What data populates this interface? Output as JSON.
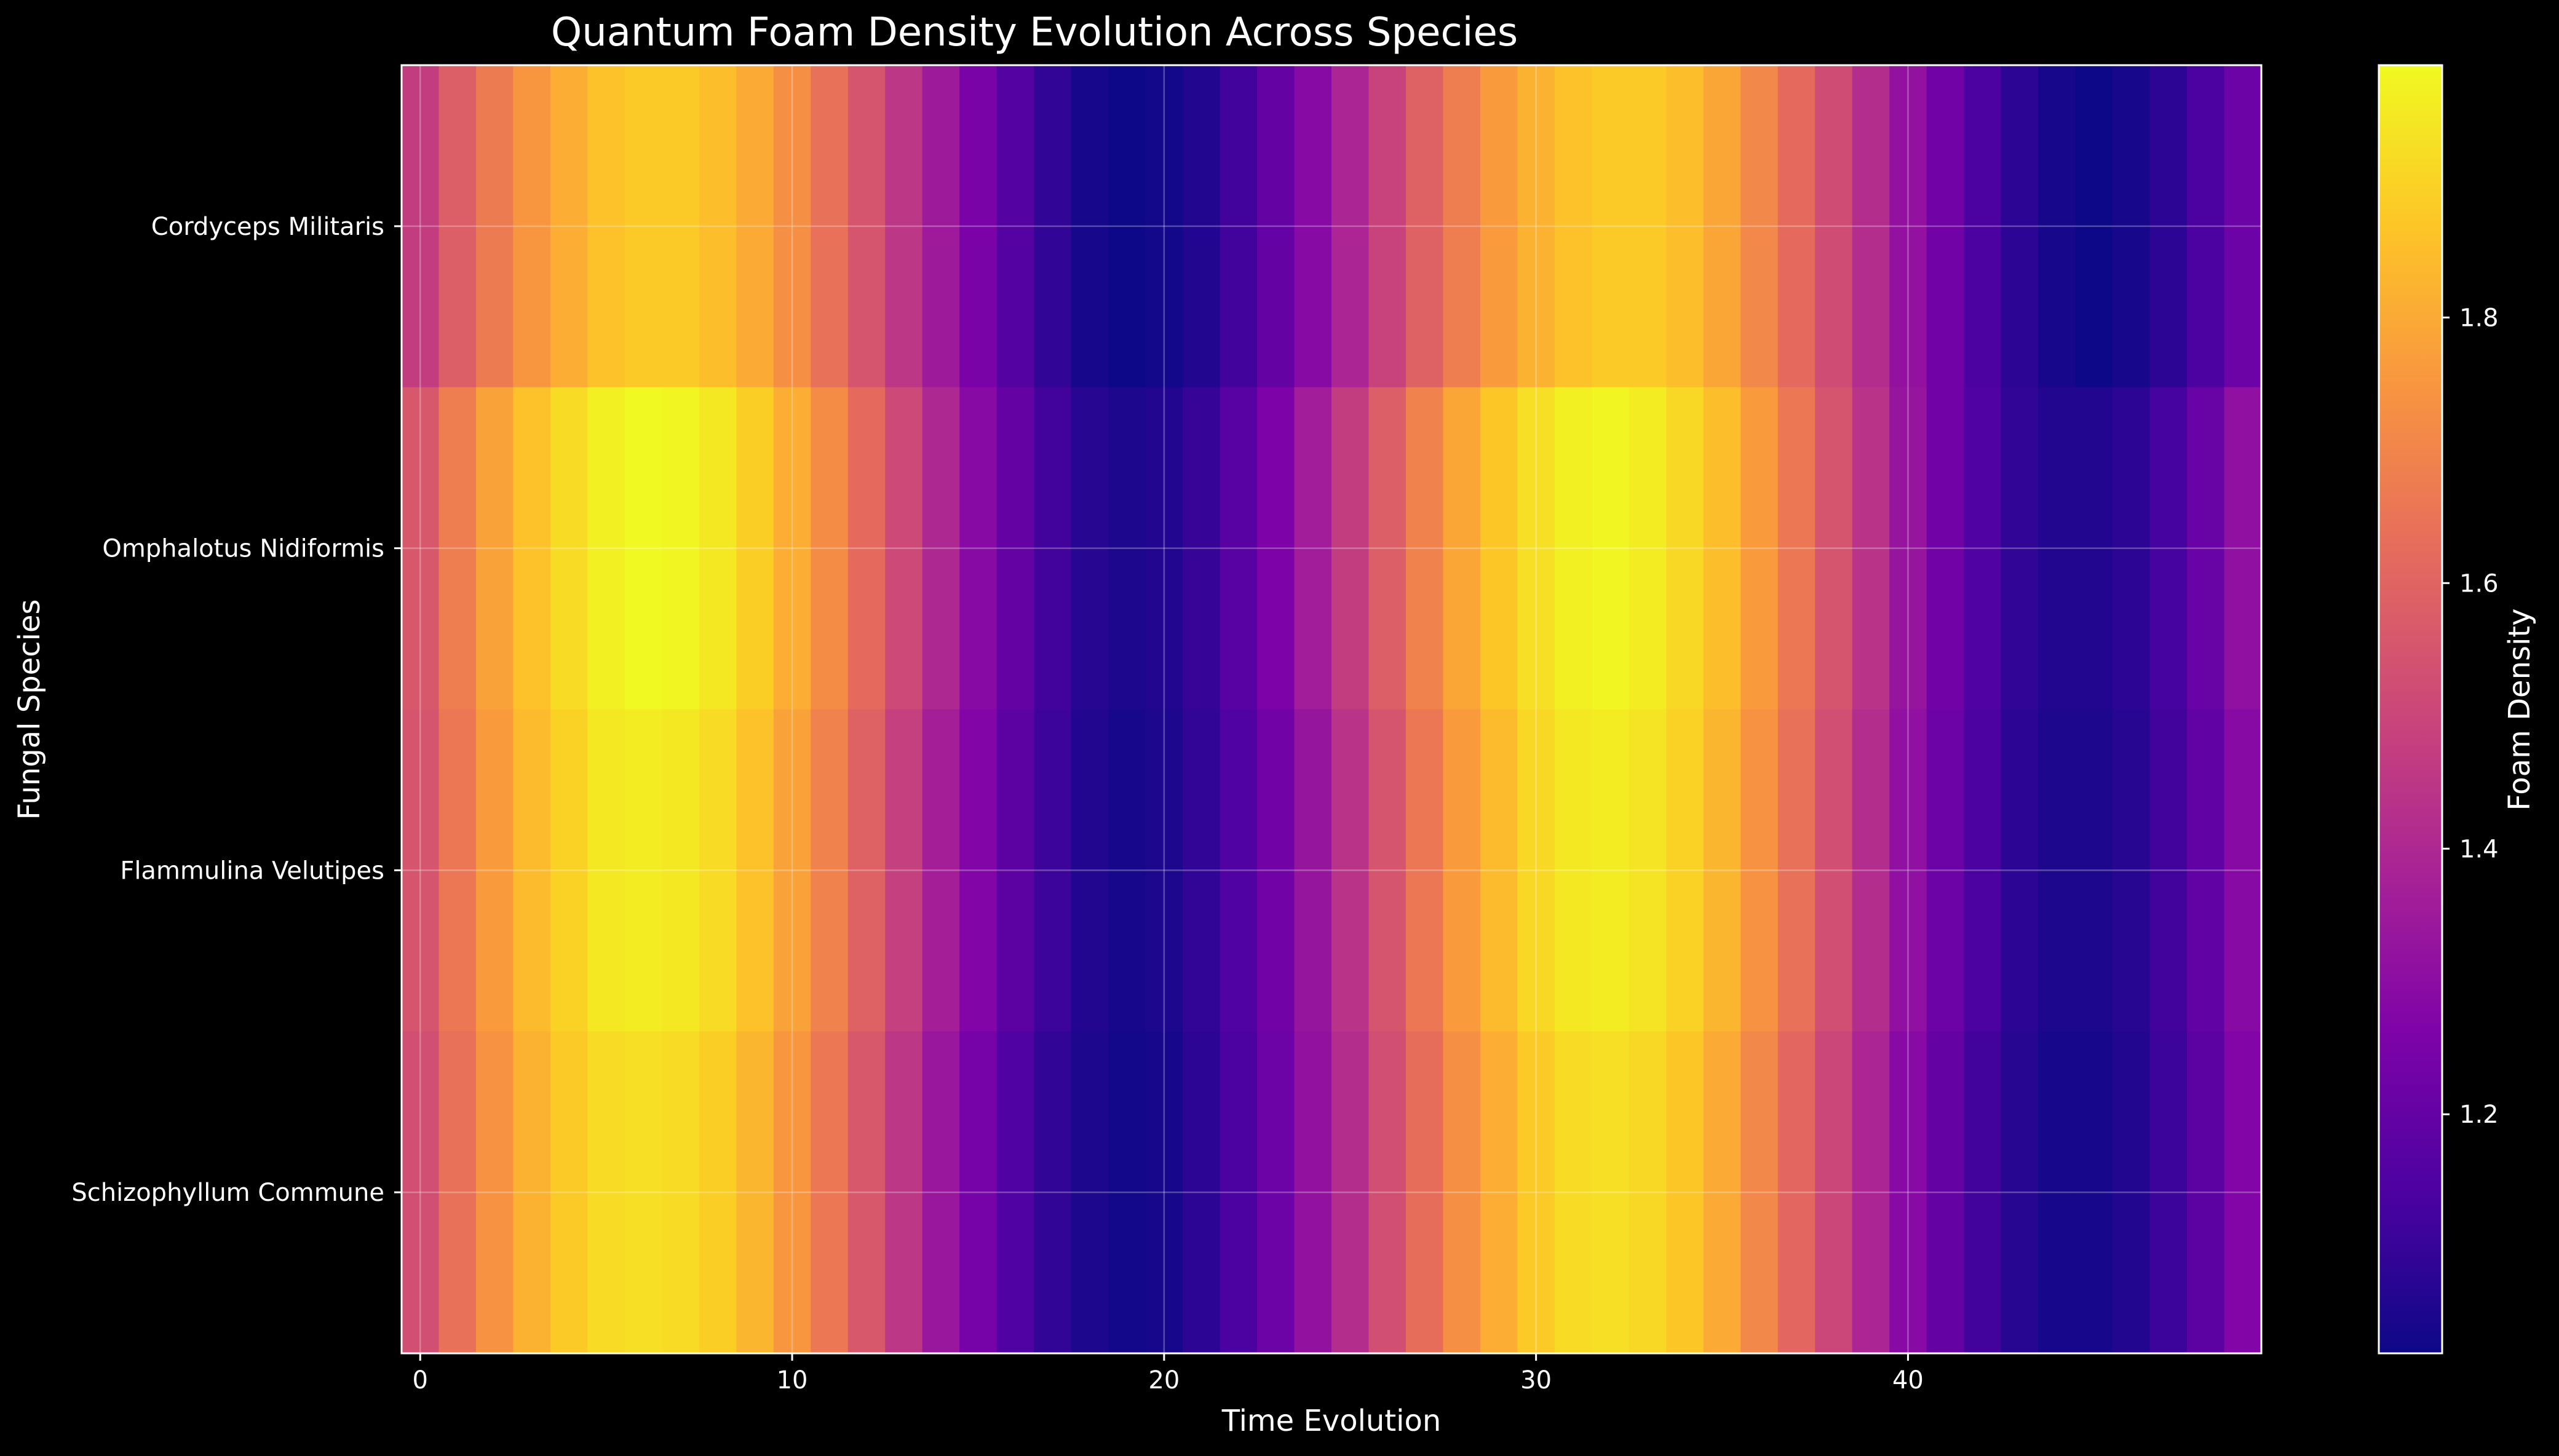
{
  "chart_data": {
    "type": "heatmap",
    "title": "Quantum Foam Density Evolution Across Species",
    "xlabel": "Time Evolution",
    "ylabel": "Fungal Species",
    "colorbar_label": "Foam Density",
    "colormap": "plasma",
    "grid": true,
    "x": [
      0,
      1,
      2,
      3,
      4,
      5,
      6,
      7,
      8,
      9,
      10,
      11,
      12,
      13,
      14,
      15,
      16,
      17,
      18,
      19,
      20,
      21,
      22,
      23,
      24,
      25,
      26,
      27,
      28,
      29,
      30,
      31,
      32,
      33,
      34,
      35,
      36,
      37,
      38,
      39,
      40,
      41,
      42,
      43,
      44,
      45,
      46,
      47,
      48,
      49
    ],
    "x_ticks": [
      0,
      10,
      20,
      30,
      40
    ],
    "xlim": [
      -0.5,
      49.5
    ],
    "rows": [
      "Cordyceps Militaris",
      "Omphalotus Nidiformis",
      "Flammulina Velutipes",
      "Schizophyllum Commune"
    ],
    "color_range": [
      1.02,
      1.99
    ],
    "colorbar_ticks": [
      1.2,
      1.4,
      1.6,
      1.8
    ],
    "values": [
      [
        1.47,
        1.58,
        1.67,
        1.75,
        1.81,
        1.86,
        1.88,
        1.88,
        1.85,
        1.8,
        1.73,
        1.64,
        1.55,
        1.45,
        1.35,
        1.25,
        1.16,
        1.09,
        1.04,
        1.02,
        1.03,
        1.06,
        1.12,
        1.2,
        1.29,
        1.39,
        1.49,
        1.59,
        1.68,
        1.76,
        1.82,
        1.86,
        1.88,
        1.88,
        1.85,
        1.79,
        1.71,
        1.62,
        1.52,
        1.42,
        1.32,
        1.23,
        1.14,
        1.08,
        1.04,
        1.02,
        1.04,
        1.08,
        1.14,
        1.22
      ],
      [
        1.56,
        1.68,
        1.78,
        1.86,
        1.92,
        1.97,
        1.99,
        1.98,
        1.95,
        1.89,
        1.81,
        1.72,
        1.62,
        1.51,
        1.4,
        1.29,
        1.2,
        1.12,
        1.07,
        1.05,
        1.06,
        1.1,
        1.17,
        1.26,
        1.36,
        1.47,
        1.58,
        1.69,
        1.79,
        1.87,
        1.93,
        1.97,
        1.98,
        1.96,
        1.91,
        1.85,
        1.76,
        1.66,
        1.55,
        1.44,
        1.33,
        1.23,
        1.15,
        1.09,
        1.06,
        1.06,
        1.08,
        1.13,
        1.21,
        1.31
      ],
      [
        1.55,
        1.66,
        1.76,
        1.84,
        1.9,
        1.95,
        1.96,
        1.95,
        1.92,
        1.86,
        1.78,
        1.69,
        1.59,
        1.48,
        1.37,
        1.27,
        1.18,
        1.11,
        1.06,
        1.04,
        1.05,
        1.09,
        1.15,
        1.23,
        1.33,
        1.44,
        1.55,
        1.66,
        1.76,
        1.84,
        1.91,
        1.95,
        1.96,
        1.94,
        1.9,
        1.83,
        1.74,
        1.64,
        1.53,
        1.42,
        1.31,
        1.22,
        1.14,
        1.08,
        1.05,
        1.05,
        1.07,
        1.12,
        1.19,
        1.29
      ],
      [
        1.53,
        1.64,
        1.74,
        1.82,
        1.88,
        1.92,
        1.93,
        1.92,
        1.89,
        1.83,
        1.75,
        1.66,
        1.56,
        1.45,
        1.34,
        1.24,
        1.15,
        1.09,
        1.05,
        1.03,
        1.04,
        1.08,
        1.14,
        1.22,
        1.32,
        1.42,
        1.53,
        1.63,
        1.73,
        1.81,
        1.88,
        1.92,
        1.93,
        1.91,
        1.87,
        1.8,
        1.71,
        1.61,
        1.5,
        1.39,
        1.29,
        1.2,
        1.12,
        1.07,
        1.04,
        1.04,
        1.06,
        1.11,
        1.18,
        1.27
      ]
    ]
  }
}
